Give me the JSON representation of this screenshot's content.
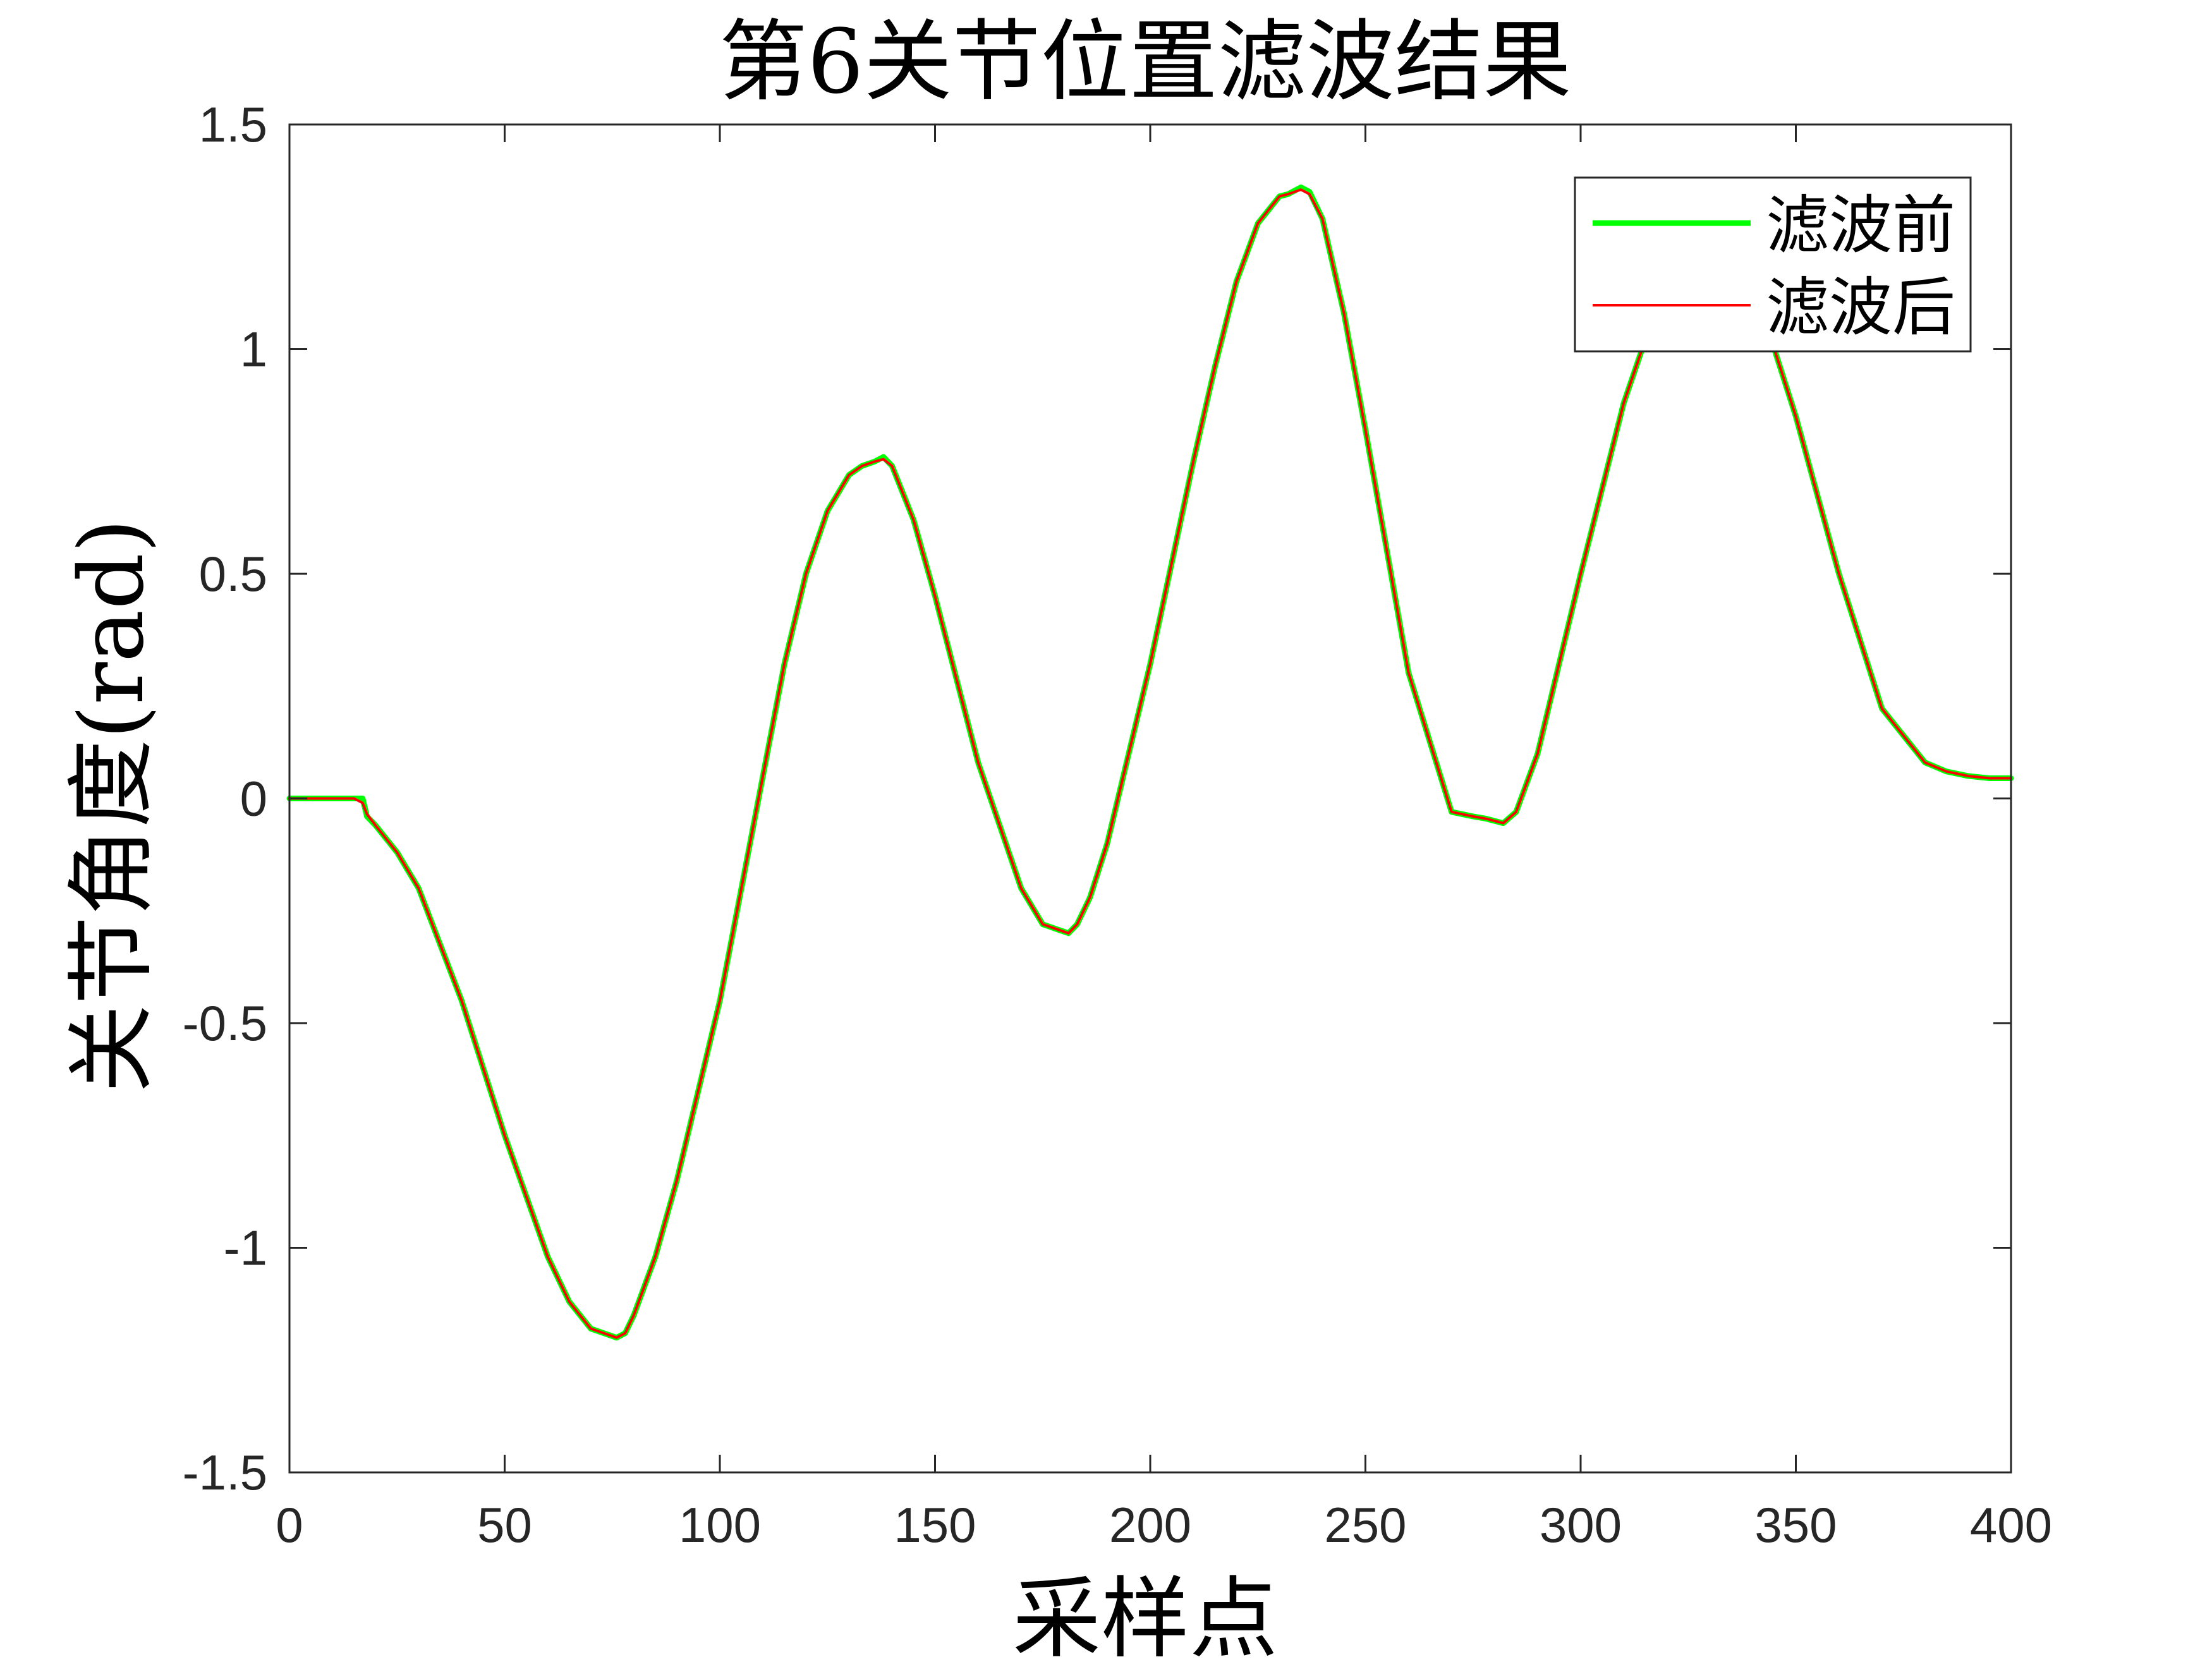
{
  "chart_data": {
    "type": "line",
    "title": "第6关节位置滤波结果",
    "xlabel": "采样点",
    "ylabel": "关节角度(rad)",
    "xlim": [
      0,
      400
    ],
    "ylim": [
      -1.5,
      1.5
    ],
    "xticks": [
      0,
      50,
      100,
      150,
      200,
      250,
      300,
      350,
      400
    ],
    "yticks": [
      -1.5,
      -1,
      -0.5,
      0,
      0.5,
      1,
      1.5
    ],
    "xtick_labels": [
      "0",
      "50",
      "100",
      "150",
      "200",
      "250",
      "300",
      "350",
      "400"
    ],
    "ytick_labels": [
      "-1.5",
      "-1",
      "-0.5",
      "0",
      "0.5",
      "1",
      "1.5"
    ],
    "grid": false,
    "legend_position": "top-right",
    "series": [
      {
        "name": "滤波前",
        "color": "#00ff00",
        "x": [
          0,
          10,
          15,
          17,
          18,
          20,
          25,
          30,
          40,
          50,
          60,
          65,
          70,
          73,
          76,
          78,
          80,
          85,
          90,
          100,
          110,
          115,
          120,
          125,
          130,
          133,
          136,
          138,
          140,
          145,
          150,
          160,
          170,
          175,
          178,
          181,
          183,
          186,
          190,
          200,
          210,
          215,
          220,
          225,
          230,
          232,
          235,
          237,
          240,
          245,
          250,
          260,
          270,
          275,
          278,
          282,
          285,
          290,
          300,
          310,
          315,
          320,
          325,
          330,
          335,
          340,
          345,
          350,
          360,
          370,
          380,
          385,
          390,
          395,
          400
        ],
        "y": [
          0.0,
          0.0,
          0.0,
          0.0,
          -0.04,
          -0.06,
          -0.12,
          -0.2,
          -0.45,
          -0.75,
          -1.02,
          -1.12,
          -1.18,
          -1.19,
          -1.2,
          -1.19,
          -1.15,
          -1.02,
          -0.85,
          -0.45,
          0.05,
          0.3,
          0.5,
          0.64,
          0.72,
          0.74,
          0.75,
          0.76,
          0.74,
          0.62,
          0.45,
          0.08,
          -0.2,
          -0.28,
          -0.29,
          -0.3,
          -0.28,
          -0.22,
          -0.1,
          0.3,
          0.75,
          0.96,
          1.15,
          1.28,
          1.34,
          1.345,
          1.36,
          1.35,
          1.29,
          1.08,
          0.82,
          0.28,
          -0.03,
          -0.04,
          -0.045,
          -0.055,
          -0.03,
          0.1,
          0.5,
          0.88,
          1.02,
          1.1,
          1.13,
          1.14,
          1.12,
          1.08,
          1.0,
          0.85,
          0.5,
          0.2,
          0.08,
          0.06,
          0.05,
          0.045,
          0.045
        ]
      },
      {
        "name": "滤波后",
        "color": "#ff0000",
        "x": [
          0,
          10,
          15,
          17,
          18,
          20,
          25,
          30,
          40,
          50,
          60,
          65,
          70,
          73,
          76,
          78,
          80,
          85,
          90,
          100,
          110,
          115,
          120,
          125,
          130,
          133,
          136,
          138,
          140,
          145,
          150,
          160,
          170,
          175,
          178,
          181,
          183,
          186,
          190,
          200,
          210,
          215,
          220,
          225,
          230,
          232,
          235,
          237,
          240,
          245,
          250,
          260,
          270,
          275,
          278,
          282,
          285,
          290,
          300,
          310,
          315,
          320,
          325,
          330,
          335,
          340,
          345,
          350,
          360,
          370,
          380,
          385,
          390,
          395,
          400
        ],
        "y": [
          0.0,
          0.0,
          0.0,
          -0.01,
          -0.035,
          -0.06,
          -0.12,
          -0.2,
          -0.45,
          -0.75,
          -1.02,
          -1.12,
          -1.18,
          -1.19,
          -1.2,
          -1.19,
          -1.15,
          -1.02,
          -0.85,
          -0.45,
          0.05,
          0.3,
          0.5,
          0.64,
          0.72,
          0.74,
          0.75,
          0.755,
          0.74,
          0.62,
          0.45,
          0.08,
          -0.2,
          -0.28,
          -0.29,
          -0.3,
          -0.28,
          -0.22,
          -0.1,
          0.3,
          0.75,
          0.96,
          1.15,
          1.28,
          1.34,
          1.345,
          1.355,
          1.345,
          1.29,
          1.08,
          0.82,
          0.28,
          -0.03,
          -0.04,
          -0.045,
          -0.055,
          -0.03,
          0.1,
          0.5,
          0.88,
          1.02,
          1.1,
          1.13,
          1.14,
          1.12,
          1.08,
          1.0,
          0.85,
          0.5,
          0.2,
          0.08,
          0.06,
          0.05,
          0.045,
          0.045
        ]
      }
    ]
  }
}
